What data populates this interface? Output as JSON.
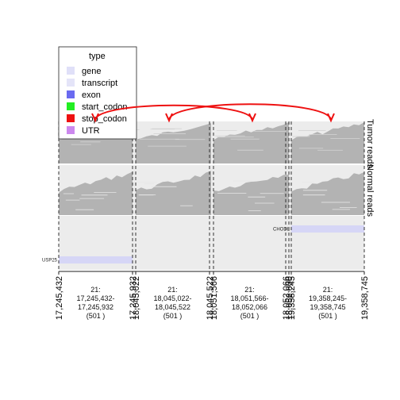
{
  "chart_data": {
    "type": "genomic-track",
    "legend": {
      "title": "type",
      "placement": "top-left",
      "entries": [
        {
          "label": "gene",
          "color": "#e0e0f8"
        },
        {
          "label": "transcript",
          "color": "#e4e4f8"
        },
        {
          "label": "exon",
          "color": "#6a6af0"
        },
        {
          "label": "start_codon",
          "color": "#22ee22"
        },
        {
          "label": "stop_codon",
          "color": "#ee1111"
        },
        {
          "label": "UTR",
          "color": "#cc88ee"
        }
      ]
    },
    "tracks": [
      {
        "label": "Tumor reads"
      },
      {
        "label": "Normal reads"
      }
    ],
    "segments": [
      {
        "chrom": "21",
        "start": 17245432,
        "end": 17245932,
        "start_label": "17,245,432",
        "end_label": "17,245,932",
        "center_label": "21:\n17,245,432-\n17,245,932\n(501 )",
        "gene": "USP25"
      },
      {
        "chrom": "21",
        "start": 18045022,
        "end": 18045522,
        "start_label": "18,045,022",
        "end_label": "18,045,522",
        "center_label": "21:\n18,045,022-\n18,045,522\n(501 )",
        "gene": ""
      },
      {
        "chrom": "21",
        "start": 18051566,
        "end": 18052066,
        "start_label": "18,051,566",
        "end_label": "18,052,066",
        "center_label": "21:\n18,051,566-\n18,052,066\n(501 )",
        "gene": ""
      },
      {
        "chrom": "21",
        "start": 18052000,
        "end": 18052000,
        "start_label": "18,052,000",
        "end_label": "",
        "center_label": "",
        "gene": ""
      },
      {
        "chrom": "21",
        "start": 19358245,
        "end": 19358745,
        "start_label": "19,358,245",
        "end_label": "19,358,745",
        "center_label": "21:\n19,358,245-\n19,358,745\n(501 )",
        "gene": "CHODL"
      }
    ],
    "links": [
      {
        "from": "21:18,045,022-18,045,522",
        "to": "21:19,358,245-19,358,745",
        "color": "#ee1111"
      },
      {
        "from": "21:17,245,432-17,245,932",
        "to": "21:18,051,566-18,052,066",
        "color": "#ee1111"
      }
    ],
    "genes": [
      {
        "name": "USP25",
        "segment": 0,
        "color": "#d6d6f6"
      },
      {
        "name": "CHODL",
        "segment": 4,
        "color": "#d6d6f6"
      }
    ],
    "colors": {
      "panel_background": "#ececec",
      "reads": "#b3b3b3",
      "arc": "#ee1111"
    }
  }
}
